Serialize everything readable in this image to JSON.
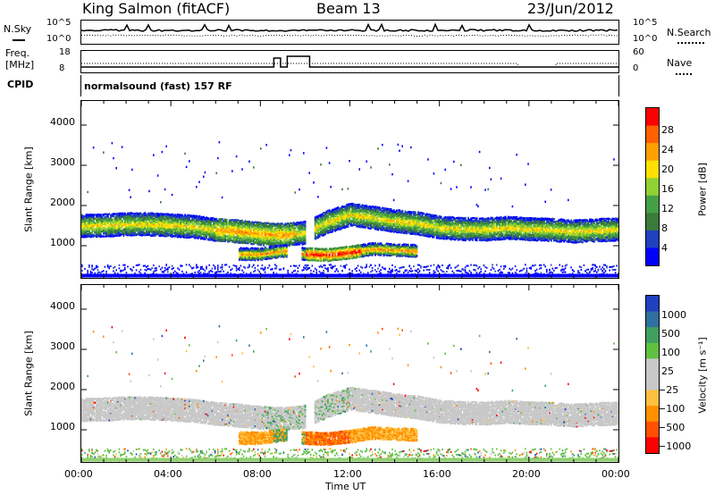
{
  "header": {
    "station": "King Salmon (fitACF)",
    "beam": "Beam 13",
    "date": "23/Jun/2012"
  },
  "status_panels": {
    "nsky_label": "N.Sky",
    "nsky_ticks": [
      "10^5",
      "10^0"
    ],
    "nsearch_label": "N.Search",
    "nsearch_ticks": [
      "10^5",
      "10^0"
    ],
    "freq_label_1": "Freq.",
    "freq_label_2": "[MHz]",
    "freq_ticks": [
      "18",
      "8"
    ],
    "nave_label": "Nave",
    "nave_ticks": [
      "60",
      "0"
    ],
    "cpid_label": "CPID",
    "cpid_value": "normalsound (fast) 157 RF"
  },
  "colors": {
    "power_scale": [
      "#0000ff",
      "#2040c0",
      "#3a7a3a",
      "#44a044",
      "#90d030",
      "#ffe000",
      "#ffa000",
      "#ff6000",
      "#ff0000"
    ],
    "velocity_scale": [
      "#ff0000",
      "#ff5000",
      "#ff9000",
      "#ffc040",
      "#c8c8c8",
      "#c8c8c8",
      "#60c040",
      "#40a060",
      "#3070a0",
      "#2040c0"
    ],
    "ground_scatter": "#c8c8c8"
  },
  "chart_data": [
    {
      "type": "heatmap",
      "name": "power",
      "ylabel": "Slant Range [km]",
      "yticks": [
        "1000",
        "2000",
        "3000",
        "4000"
      ],
      "ylim": [
        200,
        4600
      ],
      "xlim": [
        "00:00",
        "24:00"
      ],
      "colorbar_label": "Power [dB]",
      "colorbar_ticks": [
        "4",
        "8",
        "12",
        "16",
        "20",
        "24",
        "28"
      ],
      "bands": [
        {
          "label": "main",
          "x": [
            0,
            1,
            2,
            3,
            4,
            5,
            6,
            7,
            8,
            9,
            10,
            11,
            12,
            13,
            14,
            15,
            16,
            17,
            18,
            19,
            20,
            21,
            22,
            23,
            24
          ],
          "center_km": [
            1520,
            1530,
            1560,
            1560,
            1530,
            1500,
            1420,
            1380,
            1320,
            1290,
            1350,
            1620,
            1800,
            1720,
            1640,
            1580,
            1480,
            1440,
            1430,
            1470,
            1440,
            1420,
            1380,
            1410,
            1430
          ]
        },
        {
          "label": "lower",
          "x": [
            7,
            8,
            9,
            10,
            11,
            12,
            13,
            14,
            15
          ],
          "center_km": [
            820,
            820,
            900,
            820,
            800,
            860,
            950,
            920,
            900
          ]
        }
      ]
    },
    {
      "type": "heatmap",
      "name": "velocity",
      "ylabel": "Slant Range [km]",
      "yticks": [
        "1000",
        "2000",
        "3000",
        "4000"
      ],
      "ylim": [
        200,
        4600
      ],
      "xlim": [
        "00:00",
        "24:00"
      ],
      "colorbar_label": "Velocity [m s⁻¹]",
      "colorbar_ticks": [
        "1000",
        "500",
        "100",
        "25",
        "−25",
        "−100",
        "−500",
        "−1000"
      ]
    }
  ],
  "xaxis": {
    "ticks": [
      "00:00",
      "04:00",
      "08:00",
      "12:00",
      "16:00",
      "20:00",
      "00:00"
    ],
    "label": "Time UT"
  }
}
